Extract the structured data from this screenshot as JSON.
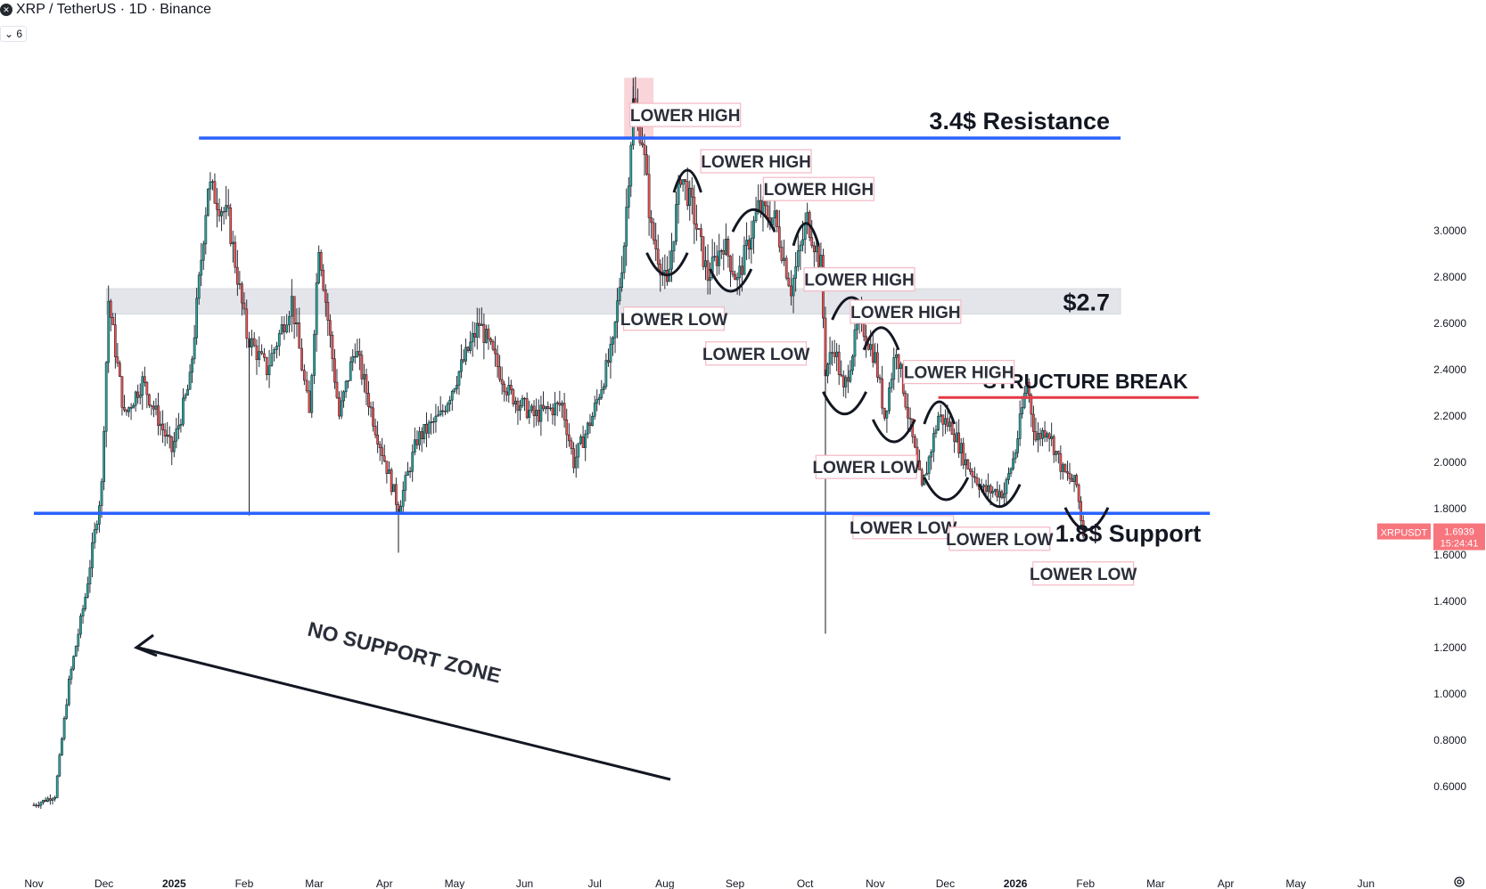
{
  "header": {
    "symbol_title": "XRP / TetherUS · 1D · Binance",
    "indicator_count": "6"
  },
  "colors": {
    "up": "#26a69a",
    "down": "#ef5350",
    "support_line": "#2962ff",
    "resistance_line": "#2962ff",
    "structure_break": "#e53945",
    "zone_2_7": "#d1d4dc",
    "peak_box": "#f8c9cf",
    "price_tag": "#f7757d"
  },
  "chart_data": {
    "type": "candlestick",
    "symbol": "XRPUSDT",
    "last_price": "1.6939",
    "countdown": "15:24:41",
    "y_ticks": [
      "0.6000",
      "0.8000",
      "1.0000",
      "1.2000",
      "1.4000",
      "1.6000",
      "1.8000",
      "2.0000",
      "2.2000",
      "2.4000",
      "2.6000",
      "2.8000",
      "3.0000"
    ],
    "y_tick_values": [
      0.6,
      0.8,
      1.0,
      1.2,
      1.4,
      1.6,
      1.8,
      2.0,
      2.2,
      2.4,
      2.6,
      2.8,
      3.0
    ],
    "x_ticks": [
      "Nov",
      "Dec",
      "2025",
      "Feb",
      "Mar",
      "Apr",
      "May",
      "Jun",
      "Jul",
      "Aug",
      "Sep",
      "Oct",
      "Nov",
      "Dec",
      "2026",
      "Feb",
      "Mar",
      "Apr",
      "May",
      "Jun"
    ],
    "x_tick_dates": [
      "2024-11-01",
      "2024-12-01",
      "2025-01-01",
      "2025-02-01",
      "2025-03-01",
      "2025-04-01",
      "2025-05-01",
      "2025-06-01",
      "2025-07-01",
      "2025-08-01",
      "2025-09-01",
      "2025-10-01",
      "2025-11-01",
      "2025-12-01",
      "2026-01-01",
      "2026-02-01",
      "2026-03-01",
      "2026-04-01",
      "2026-05-01",
      "2026-06-01"
    ],
    "price_path": [
      [
        "2024-11-01",
        0.52
      ],
      [
        "2024-11-10",
        0.56
      ],
      [
        "2024-11-16",
        1.05
      ],
      [
        "2024-11-23",
        1.42
      ],
      [
        "2024-11-30",
        1.9
      ],
      [
        "2024-12-03",
        2.7
      ],
      [
        "2024-12-10",
        2.2
      ],
      [
        "2024-12-18",
        2.35
      ],
      [
        "2024-12-31",
        2.05
      ],
      [
        "2025-01-08",
        2.35
      ],
      [
        "2025-01-16",
        3.2
      ],
      [
        "2025-01-25",
        3.05
      ],
      [
        "2025-02-02",
        2.55
      ],
      [
        "2025-02-10",
        2.4
      ],
      [
        "2025-02-20",
        2.7
      ],
      [
        "2025-02-27",
        2.2
      ],
      [
        "2025-03-03",
        2.95
      ],
      [
        "2025-03-12",
        2.2
      ],
      [
        "2025-03-19",
        2.5
      ],
      [
        "2025-03-28",
        2.15
      ],
      [
        "2025-04-07",
        1.8
      ],
      [
        "2025-04-15",
        2.1
      ],
      [
        "2025-04-25",
        2.2
      ],
      [
        "2025-05-12",
        2.6
      ],
      [
        "2025-05-25",
        2.3
      ],
      [
        "2025-06-05",
        2.2
      ],
      [
        "2025-06-17",
        2.25
      ],
      [
        "2025-06-22",
        2.0
      ],
      [
        "2025-06-30",
        2.2
      ],
      [
        "2025-07-09",
        2.5
      ],
      [
        "2025-07-14",
        2.95
      ],
      [
        "2025-07-18",
        3.55
      ],
      [
        "2025-07-22",
        3.4
      ],
      [
        "2025-07-26",
        3.0
      ],
      [
        "2025-08-02",
        2.75
      ],
      [
        "2025-08-08",
        3.25
      ],
      [
        "2025-08-13",
        3.1
      ],
      [
        "2025-08-20",
        2.8
      ],
      [
        "2025-08-27",
        2.95
      ],
      [
        "2025-09-02",
        2.78
      ],
      [
        "2025-09-11",
        3.1
      ],
      [
        "2025-09-18",
        3.05
      ],
      [
        "2025-09-25",
        2.75
      ],
      [
        "2025-10-02",
        3.05
      ],
      [
        "2025-10-08",
        2.85
      ],
      [
        "2025-10-10",
        2.4
      ],
      [
        "2025-10-14",
        2.5
      ],
      [
        "2025-10-18",
        2.3
      ],
      [
        "2025-10-25",
        2.62
      ],
      [
        "2025-11-01",
        2.45
      ],
      [
        "2025-11-05",
        2.2
      ],
      [
        "2025-11-10",
        2.5
      ],
      [
        "2025-11-16",
        2.15
      ],
      [
        "2025-11-21",
        1.88
      ],
      [
        "2025-11-28",
        2.2
      ],
      [
        "2025-12-04",
        2.15
      ],
      [
        "2025-12-10",
        2.0
      ],
      [
        "2025-12-18",
        1.88
      ],
      [
        "2025-12-27",
        1.87
      ],
      [
        "2026-01-01",
        2.05
      ],
      [
        "2026-01-06",
        2.35
      ],
      [
        "2026-01-10",
        2.1
      ],
      [
        "2026-01-15",
        2.15
      ],
      [
        "2026-01-22",
        1.96
      ],
      [
        "2026-01-28",
        1.9
      ],
      [
        "2026-01-31",
        1.6939
      ]
    ],
    "wick_extremes": [
      {
        "date": "2025-02-03",
        "low": 1.77
      },
      {
        "date": "2025-04-07",
        "low": 1.61
      },
      {
        "date": "2025-10-10",
        "low": 1.26
      },
      {
        "date": "2025-07-18",
        "high": 3.66
      }
    ],
    "levels": [
      {
        "name": "3.4$ Resistance",
        "price": 3.4,
        "from": "2025-01-12",
        "to": "2026-02-15"
      },
      {
        "name": "1.8$ Support",
        "price": 1.78,
        "from": "2024-11-01",
        "to": "2026-03-25"
      },
      {
        "name": "$2.7",
        "price_low": 2.64,
        "price_high": 2.75,
        "from": "2024-12-02",
        "to": "2026-02-15"
      },
      {
        "name": "STRUCTURE BREAK",
        "price": 2.28,
        "from": "2025-11-28",
        "to": "2026-03-20"
      }
    ],
    "annotations": [
      {
        "text": "LOWER HIGH",
        "date": "2025-08-10",
        "price": 3.5
      },
      {
        "text": "LOWER HIGH",
        "date": "2025-09-10",
        "price": 3.3
      },
      {
        "text": "LOWER HIGH",
        "date": "2025-10-07",
        "price": 3.18
      },
      {
        "text": "LOWER HIGH",
        "date": "2025-10-25",
        "price": 2.79
      },
      {
        "text": "LOWER HIGH",
        "date": "2025-11-14",
        "price": 2.65
      },
      {
        "text": "LOWER HIGH",
        "date": "2025-12-07",
        "price": 2.39
      },
      {
        "text": "LOWER LOW",
        "date": "2025-08-05",
        "price": 2.62
      },
      {
        "text": "LOWER LOW",
        "date": "2025-09-10",
        "price": 2.47
      },
      {
        "text": "LOWER LOW",
        "date": "2025-10-28",
        "price": 1.98
      },
      {
        "text": "LOWER LOW",
        "date": "2025-11-13",
        "price": 1.72
      },
      {
        "text": "LOWER LOW",
        "date": "2025-12-25",
        "price": 1.67
      },
      {
        "text": "LOWER LOW",
        "date": "2026-01-31",
        "price": 1.52
      },
      {
        "text": "NO SUPPORT ZONE",
        "date": "2025-04-05",
        "price": 1.15
      }
    ]
  }
}
